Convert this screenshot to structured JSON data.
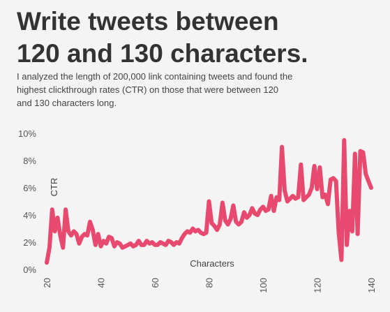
{
  "title_line1": "Write tweets between",
  "title_line2": "120 and 130 characters.",
  "subtitle": "I analyzed the length of 200,000 link containing tweets and found the highest clickthrough rates (CTR) on those that were between 120 and 130 characters long.",
  "chart_data": {
    "type": "line",
    "title": "Write tweets between 120 and 130 characters.",
    "xlabel": "Characters",
    "ylabel": "CTR",
    "xlim": [
      20,
      140
    ],
    "ylim": [
      0,
      10
    ],
    "x_ticks": [
      20,
      40,
      60,
      80,
      100,
      120,
      140
    ],
    "y_ticks": [
      0,
      2,
      4,
      6,
      8,
      10
    ],
    "y_tick_labels": [
      "0%",
      "2%",
      "4%",
      "6%",
      "8%",
      "10%"
    ],
    "grid": false,
    "line_color": "#e84a6f",
    "x": [
      20,
      21,
      22,
      23,
      24,
      25,
      26,
      27,
      28,
      29,
      30,
      31,
      32,
      33,
      34,
      35,
      36,
      37,
      38,
      39,
      40,
      41,
      42,
      43,
      44,
      45,
      46,
      47,
      48,
      49,
      50,
      51,
      52,
      53,
      54,
      55,
      56,
      57,
      58,
      59,
      60,
      61,
      62,
      63,
      64,
      65,
      66,
      67,
      68,
      69,
      70,
      71,
      72,
      73,
      74,
      75,
      76,
      77,
      78,
      79,
      80,
      81,
      82,
      83,
      84,
      85,
      86,
      87,
      88,
      89,
      90,
      91,
      92,
      93,
      94,
      95,
      96,
      97,
      98,
      99,
      100,
      101,
      102,
      103,
      104,
      105,
      106,
      107,
      108,
      109,
      110,
      111,
      112,
      113,
      114,
      115,
      116,
      117,
      118,
      119,
      120,
      121,
      122,
      123,
      124,
      125,
      126,
      127,
      128,
      129,
      130,
      131,
      132,
      133,
      134,
      135,
      136,
      137,
      138,
      139,
      140
    ],
    "values": [
      0.5,
      1.6,
      4.4,
      2.8,
      3.8,
      2.5,
      1.6,
      4.4,
      2.8,
      2.5,
      2.8,
      2.6,
      1.9,
      2.4,
      2.6,
      2.5,
      3.5,
      2.9,
      1.8,
      2.6,
      1.7,
      2.1,
      1.9,
      2.4,
      2.3,
      1.7,
      2.0,
      1.9,
      1.6,
      1.7,
      1.8,
      1.9,
      1.7,
      1.8,
      2.1,
      1.8,
      1.8,
      2.1,
      1.9,
      2.0,
      1.8,
      1.8,
      2.0,
      1.9,
      1.8,
      2.1,
      2.0,
      1.8,
      2.0,
      1.9,
      2.3,
      2.6,
      2.8,
      2.7,
      3.0,
      2.8,
      2.9,
      2.7,
      2.6,
      2.7,
      5.0,
      3.4,
      3.2,
      2.9,
      3.3,
      4.9,
      3.6,
      3.3,
      3.7,
      4.7,
      3.5,
      3.3,
      3.5,
      4.2,
      3.8,
      4.0,
      4.5,
      4.1,
      4.0,
      4.4,
      4.6,
      4.3,
      4.4,
      5.4,
      4.3,
      5.3,
      5.1,
      9.0,
      5.8,
      5.0,
      5.2,
      5.4,
      5.2,
      5.3,
      7.7,
      5.1,
      5.3,
      5.5,
      6.0,
      7.6,
      5.9,
      7.5,
      5.3,
      5.5,
      4.8,
      6.6,
      6.7,
      6.5,
      2.7,
      0.7,
      9.5,
      1.8,
      4.3,
      2.8,
      8.5,
      2.6,
      8.7,
      8.6,
      7.0,
      6.5,
      6.0
    ]
  }
}
